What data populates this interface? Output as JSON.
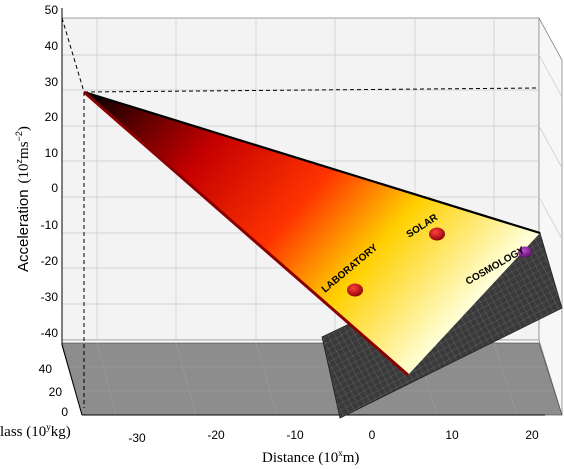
{
  "chart_data": {
    "type": "surface3d",
    "title": "",
    "axes": {
      "z": {
        "label": "Acceleration",
        "unit": "(10",
        "unit_sup": "z",
        "unit_tail": "ms",
        "unit_sup2": "−2",
        "unit_close": ")",
        "ticks": [
          50,
          40,
          30,
          20,
          10,
          0,
          -10,
          -20,
          -30,
          -40
        ],
        "range": [
          -40,
          50
        ]
      },
      "x": {
        "label": "Distance (10",
        "label_sup": "x",
        "label_tail": "m)",
        "ticks": [
          -30,
          -20,
          -10,
          0,
          10,
          20
        ],
        "range": [
          -35,
          25
        ]
      },
      "y": {
        "label": "lass (10",
        "label_sup": "y",
        "label_tail": "kg)",
        "ticks": [
          0,
          20,
          40
        ],
        "range": [
          0,
          50
        ]
      }
    },
    "grid": true,
    "surface": {
      "colormap": [
        "#000000",
        "#d40000",
        "#ff6a00",
        "#ffd500",
        "#ffffc8"
      ],
      "apex": {
        "distance": -35,
        "mass": 45,
        "acceleration": 30
      },
      "edges": [
        {
          "distance": 21,
          "mass": 45,
          "acceleration": -15
        },
        {
          "distance": 5,
          "mass": 0,
          "acceleration": -45
        }
      ]
    },
    "points": [
      {
        "label": "LABORATORY",
        "color": "#c0000c"
      },
      {
        "label": "SOLAR",
        "color": "#c0000c"
      },
      {
        "label": "COSMOLOGY",
        "color": "#7a1a8a"
      }
    ]
  }
}
